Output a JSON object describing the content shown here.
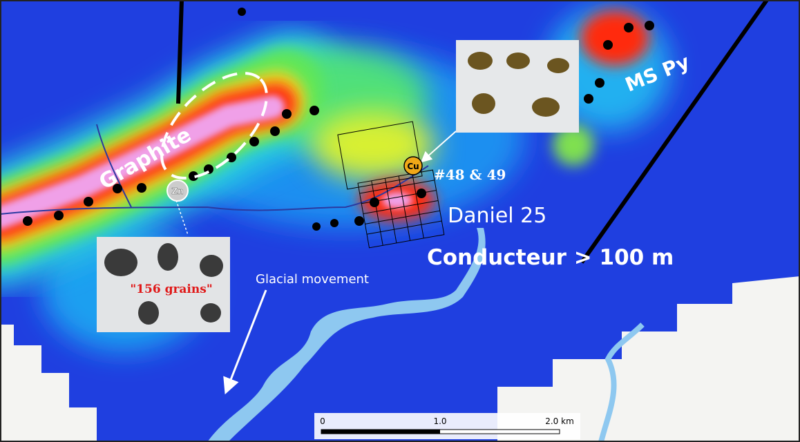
{
  "annotations": {
    "graphite": "Graphite",
    "ms_py": "MS Py",
    "daniel": "Daniel 25",
    "conducteur": "Conducteur > 100 m",
    "glacial": "Glacial movement",
    "samples": "#48 & 49",
    "grains": "\"156 grains\""
  },
  "markers": {
    "zn": "Zn",
    "cu": "Cu"
  },
  "scale_bar": {
    "ticks": [
      "0",
      "1.0",
      "2.0 km"
    ]
  }
}
